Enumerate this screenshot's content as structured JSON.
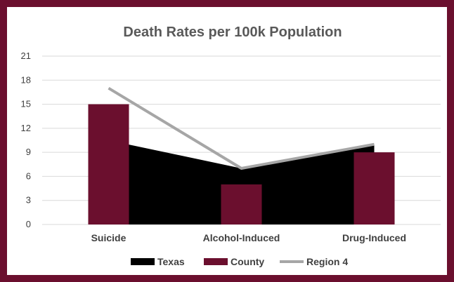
{
  "chart_data": {
    "type": "bar",
    "title": "Death Rates per 100k Population",
    "xlabel": "",
    "ylabel": "",
    "ylim": [
      0,
      21
    ],
    "yticks": [
      "0",
      "3",
      "6",
      "9",
      "12",
      "15",
      "18",
      "21"
    ],
    "categories": [
      "Suicide",
      "Alcohol-Induced",
      "Drug-Induced"
    ],
    "grid": true,
    "legend_position": "bottom",
    "series": [
      {
        "name": "Texas",
        "type": "area",
        "color": "#000000",
        "values": [
          10.5,
          7.0,
          10.0
        ]
      },
      {
        "name": "County",
        "type": "bar",
        "color": "#6b0f2e",
        "values": [
          15,
          5,
          9
        ]
      },
      {
        "name": "Region 4",
        "type": "line",
        "color": "#a6a6a6",
        "values": [
          17,
          7,
          10
        ]
      }
    ]
  },
  "colors": {
    "frame": "#6b0f2e",
    "gridline": "#d9d9d9"
  }
}
